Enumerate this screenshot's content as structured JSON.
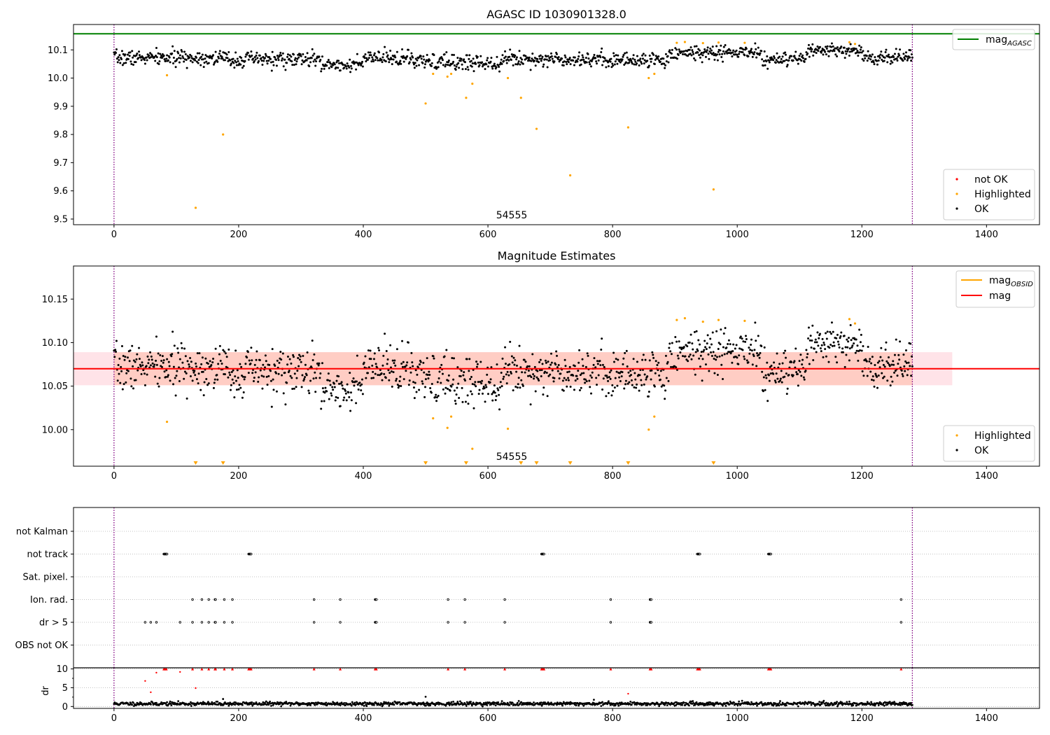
{
  "colors": {
    "ok": "#000000",
    "highlighted": "#ffa500",
    "not_ok": "#ff0000",
    "agasc_line": "#008000",
    "obsid_line": "#ffa500",
    "mag_line": "#ff0000",
    "band_outer": "#ffc0cb",
    "band_inner": "#ffa07a",
    "obs_boundary": "#800080"
  },
  "chart_data": [
    {
      "type": "scatter",
      "title": "AGASC ID 1030901328.0",
      "annotation": "54555",
      "xlim": [
        -65,
        1485
      ],
      "ylim": [
        9.48,
        10.19
      ],
      "xticks": [
        0,
        200,
        400,
        600,
        800,
        1000,
        1200,
        1400
      ],
      "yticks": [
        9.5,
        9.6,
        9.7,
        9.8,
        9.9,
        10.0,
        10.1
      ],
      "ytick_labels": [
        "9.5",
        "9.6",
        "9.7",
        "9.8",
        "9.9",
        "10.0",
        "10.1"
      ],
      "obs_boundaries": [
        0,
        1281
      ],
      "hlines": [
        {
          "name": "mag",
          "subscript": "AGASC",
          "value": 10.157,
          "color": "#008000"
        }
      ],
      "legend_lines": [
        {
          "name": "mag",
          "subscript": "AGASC",
          "color": "#008000"
        }
      ],
      "legend_points": [
        {
          "name": "not OK",
          "color": "#ff0000"
        },
        {
          "name": "Highlighted",
          "color": "#ffa500"
        },
        {
          "name": "OK",
          "color": "#000000"
        }
      ],
      "highlighted_points": [
        [
          85,
          10.01
        ],
        [
          131,
          9.54
        ],
        [
          175,
          9.8
        ],
        [
          500,
          9.91
        ],
        [
          512,
          10.015
        ],
        [
          535,
          10.005
        ],
        [
          541,
          10.015
        ],
        [
          565,
          9.93
        ],
        [
          575,
          9.98
        ],
        [
          632,
          10.0
        ],
        [
          653,
          9.93
        ],
        [
          678,
          9.82
        ],
        [
          732,
          9.655
        ],
        [
          825,
          9.825
        ],
        [
          858,
          10.0
        ],
        [
          867,
          10.015
        ],
        [
          903,
          10.125
        ],
        [
          916,
          10.128
        ],
        [
          945,
          10.124
        ],
        [
          962,
          9.605
        ],
        [
          970,
          10.126
        ],
        [
          1012,
          10.125
        ],
        [
          1180,
          10.127
        ],
        [
          1189,
          10.121
        ]
      ],
      "ok_series": {
        "x_range": [
          0,
          1281
        ],
        "n_points": 1281,
        "segments": [
          {
            "x": [
              0,
              180
            ],
            "mean": 10.072,
            "spread": 0.026
          },
          {
            "x": [
              180,
              330
            ],
            "mean": 10.066,
            "spread": 0.028
          },
          {
            "x": [
              330,
              400
            ],
            "mean": 10.048,
            "spread": 0.024
          },
          {
            "x": [
              400,
              480
            ],
            "mean": 10.07,
            "spread": 0.026
          },
          {
            "x": [
              480,
              620
            ],
            "mean": 10.056,
            "spread": 0.03
          },
          {
            "x": [
              620,
              780
            ],
            "mean": 10.068,
            "spread": 0.026
          },
          {
            "x": [
              780,
              890
            ],
            "mean": 10.064,
            "spread": 0.026
          },
          {
            "x": [
              890,
              1040
            ],
            "mean": 10.09,
            "spread": 0.026
          },
          {
            "x": [
              1040,
              1110
            ],
            "mean": 10.064,
            "spread": 0.026
          },
          {
            "x": [
              1110,
              1200
            ],
            "mean": 10.097,
            "spread": 0.022
          },
          {
            "x": [
              1200,
              1281
            ],
            "mean": 10.074,
            "spread": 0.024
          }
        ],
        "seed": 7
      }
    },
    {
      "type": "scatter",
      "title": "Magnitude Estimates",
      "annotation": "54555",
      "xlim": [
        -65,
        1485
      ],
      "ylim": [
        9.958,
        10.188
      ],
      "xticks": [
        0,
        200,
        400,
        600,
        800,
        1000,
        1200,
        1400
      ],
      "yticks": [
        10.0,
        10.05,
        10.1,
        10.15
      ],
      "ytick_labels": [
        "10.00",
        "10.05",
        "10.10",
        "10.15"
      ],
      "obs_boundaries": [
        0,
        1281
      ],
      "hlines": [
        {
          "name": "mag",
          "subscript": "OBSID",
          "value": 10.07,
          "color": "#ffa500"
        },
        {
          "name": "mag",
          "subscript": "",
          "value": 10.07,
          "color": "#ff0000"
        }
      ],
      "bands": [
        {
          "range": [
            10.051,
            10.089
          ],
          "color": "#ffc0cb",
          "alpha": 0.45
        },
        {
          "range": [
            10.051,
            10.089
          ],
          "color": "#ffa07a",
          "alpha": 0.32,
          "x_end": 1281
        }
      ],
      "band_x_end": 1345,
      "legend_lines": [
        {
          "name": "mag",
          "subscript": "OBSID",
          "color": "#ffa500"
        },
        {
          "name": "mag",
          "subscript": "",
          "color": "#ff0000"
        }
      ],
      "legend_points": [
        {
          "name": "Highlighted",
          "color": "#ffa500"
        },
        {
          "name": "OK",
          "color": "#000000"
        }
      ],
      "highlighted_points": [
        [
          85,
          10.009
        ],
        [
          512,
          10.013
        ],
        [
          535,
          10.002
        ],
        [
          541,
          10.015
        ],
        [
          575,
          9.978
        ],
        [
          632,
          10.001
        ],
        [
          858,
          10.0
        ],
        [
          867,
          10.015
        ],
        [
          903,
          10.126
        ],
        [
          916,
          10.128
        ],
        [
          945,
          10.124
        ],
        [
          970,
          10.126
        ],
        [
          1012,
          10.125
        ],
        [
          1180,
          10.127
        ],
        [
          1189,
          10.122
        ]
      ],
      "below_range_markers": [
        131,
        175,
        500,
        565,
        653,
        678,
        732,
        825,
        962
      ],
      "ok_series_ref": 0
    },
    {
      "type": "scatter",
      "categories": [
        "not Kalman",
        "not track",
        "Sat. pixel.",
        "Ion. rad.",
        "dr > 5",
        "OBS not OK"
      ],
      "xlim": [
        -65,
        1485
      ],
      "xticks": [
        0,
        200,
        400,
        600,
        800,
        1000,
        1200,
        1400
      ],
      "obs_boundaries": [
        0,
        1281
      ],
      "flag_events": {
        "not Kalman": [],
        "not track": [
          80,
          81,
          82,
          83,
          84,
          85,
          216,
          217,
          218,
          219,
          220,
          686,
          687,
          688,
          689,
          690,
          936,
          937,
          938,
          939,
          940,
          1050,
          1051,
          1052,
          1053,
          1054
        ],
        "Sat. pixel.": [],
        "Ion. rad.": [
          126,
          141,
          152,
          162,
          163,
          177,
          190,
          321,
          363,
          419,
          420,
          421,
          536,
          563,
          627,
          797,
          860,
          861,
          862,
          1263
        ],
        "dr > 5": [
          50,
          59,
          68,
          106,
          126,
          141,
          152,
          162,
          163,
          177,
          190,
          321,
          363,
          419,
          420,
          421,
          536,
          563,
          627,
          797,
          860,
          861,
          862,
          1263
        ],
        "OBS not OK": []
      },
      "dr_panel": {
        "ylabel": "dr",
        "ylim": [
          -0.5,
          10.3
        ],
        "yticks": [
          0,
          5,
          10
        ],
        "ytick_labels": [
          "0",
          "5",
          "10"
        ],
        "clipped_max": 10,
        "not_ok_points": [
          [
            50,
            6.8
          ],
          [
            59,
            3.8
          ],
          [
            68,
            9.0
          ],
          [
            106,
            9.2
          ],
          [
            131,
            4.9
          ],
          [
            825,
            3.4
          ],
          [
            80,
            10
          ],
          [
            82,
            10
          ],
          [
            84,
            10
          ],
          [
            126,
            10
          ],
          [
            141,
            10
          ],
          [
            152,
            10
          ],
          [
            162,
            10
          ],
          [
            163,
            10
          ],
          [
            177,
            10
          ],
          [
            190,
            10
          ],
          [
            216,
            10
          ],
          [
            218,
            10
          ],
          [
            220,
            10
          ],
          [
            321,
            10
          ],
          [
            363,
            10
          ],
          [
            419,
            10
          ],
          [
            421,
            10
          ],
          [
            536,
            10
          ],
          [
            563,
            10
          ],
          [
            627,
            10
          ],
          [
            686,
            10
          ],
          [
            688,
            10
          ],
          [
            690,
            10
          ],
          [
            797,
            10
          ],
          [
            860,
            10
          ],
          [
            862,
            10
          ],
          [
            936,
            10
          ],
          [
            938,
            10
          ],
          [
            940,
            10
          ],
          [
            1050,
            10
          ],
          [
            1052,
            10
          ],
          [
            1054,
            10
          ],
          [
            1263,
            10
          ]
        ],
        "ok_series": {
          "x_range": [
            0,
            1281
          ],
          "n_points": 1281,
          "mean": 0.75,
          "spread": 0.55,
          "seed": 11
        },
        "ok_outliers": [
          [
            175,
            2.0
          ],
          [
            500,
            2.6
          ],
          [
            770,
            1.8
          ]
        ]
      }
    }
  ]
}
